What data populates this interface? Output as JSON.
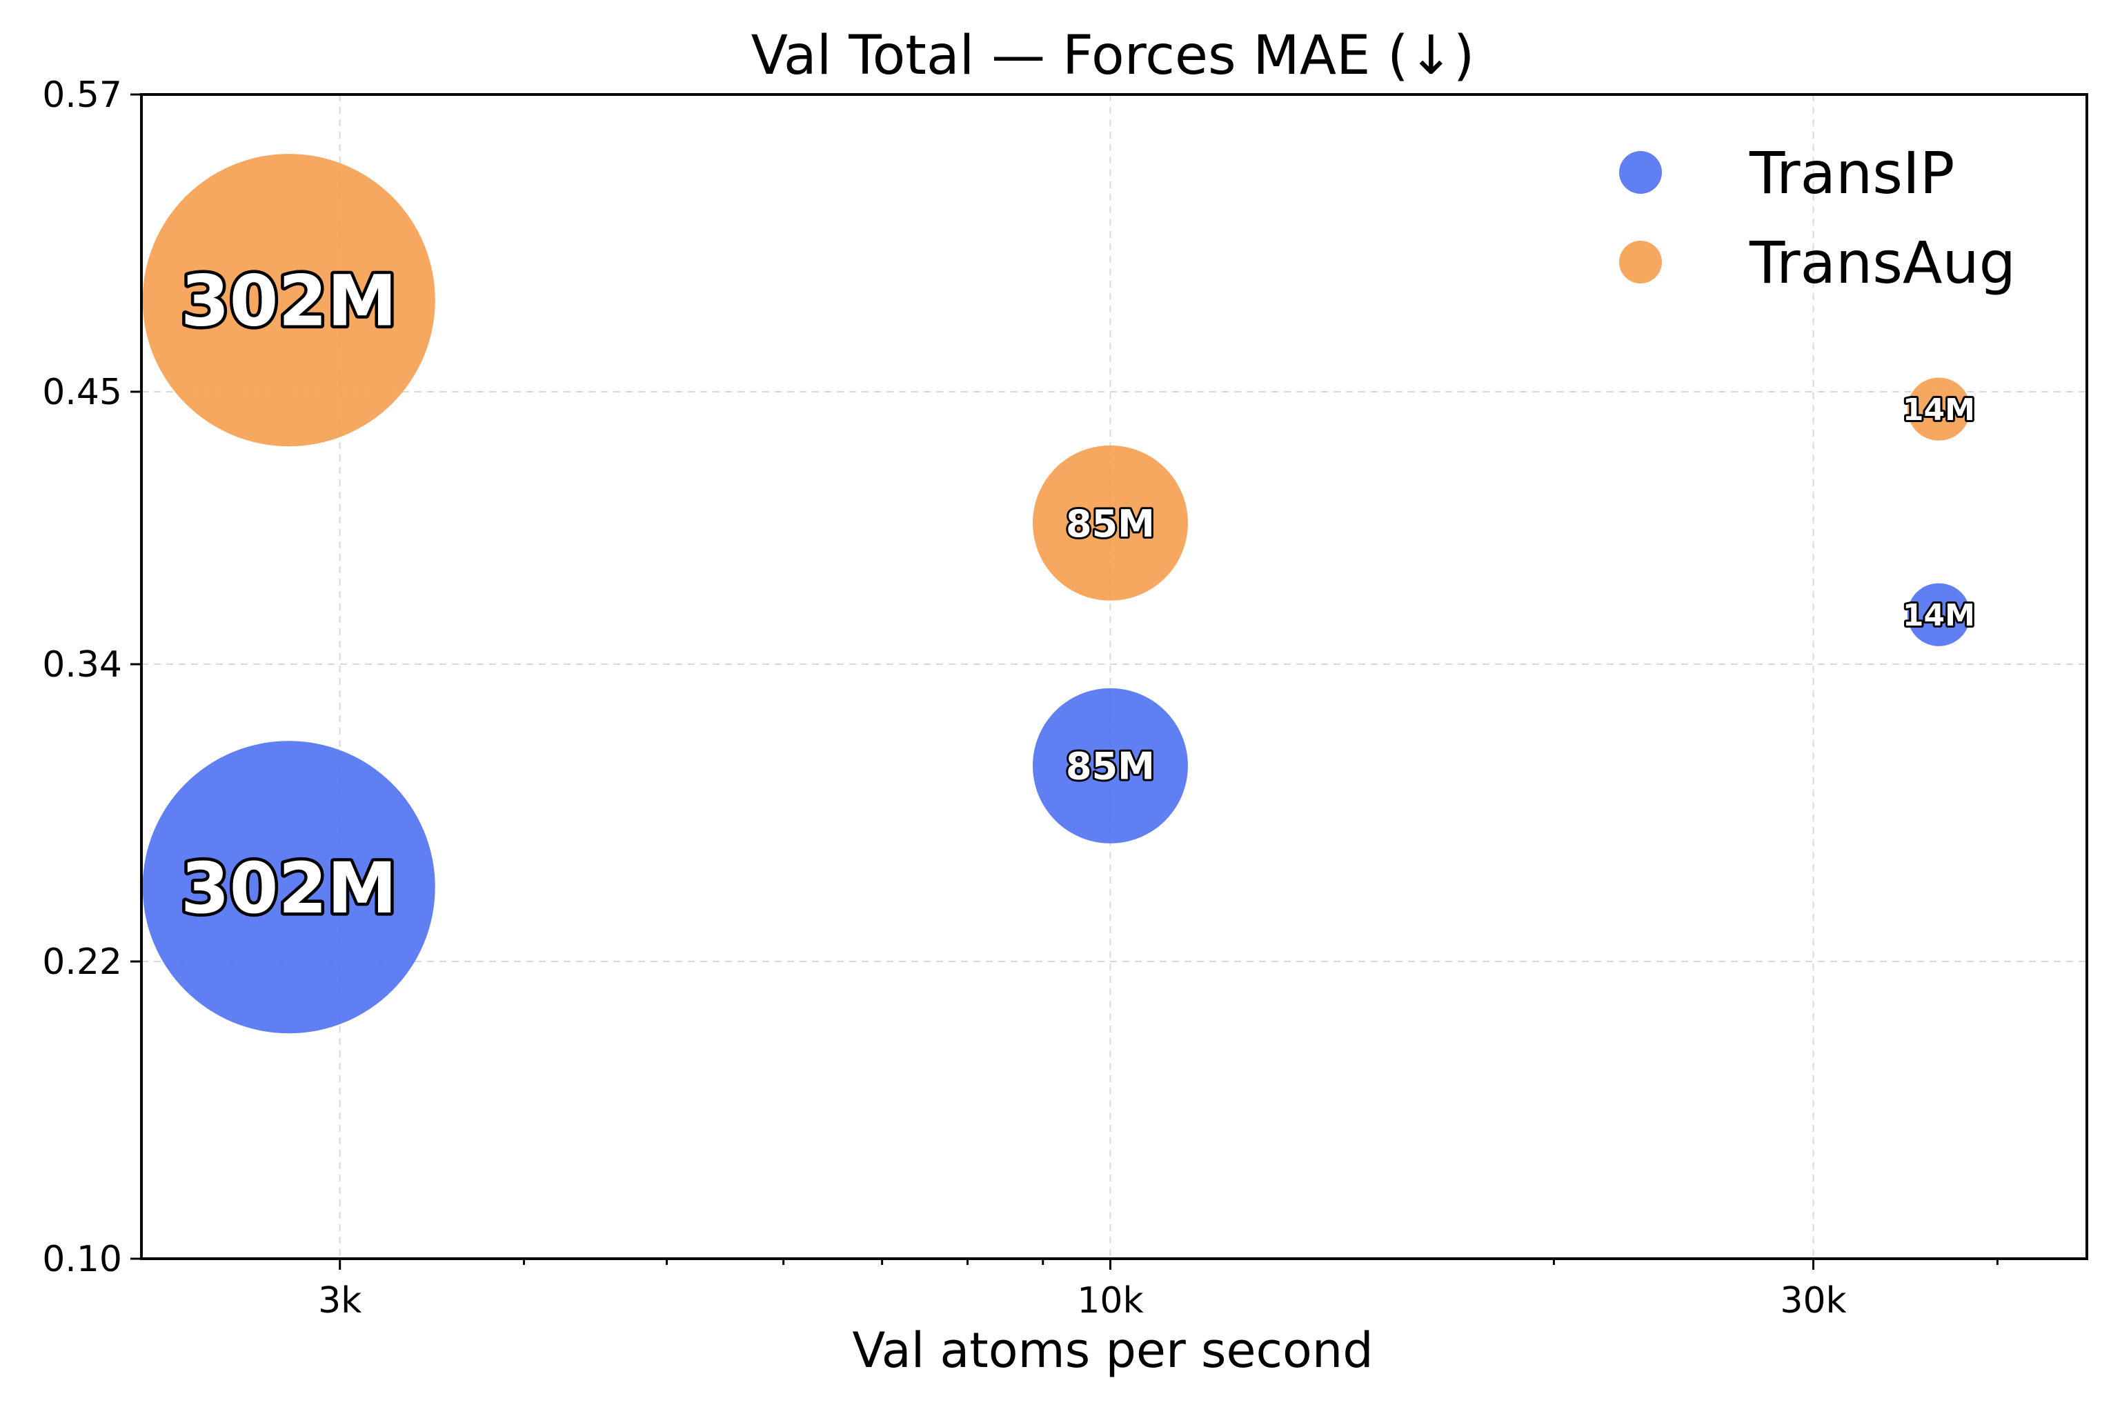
{
  "chart_data": {
    "type": "scatter",
    "title": "Val Total — Forces MAE (↓)",
    "xlabel": "Val atoms per second",
    "ylabel": "",
    "xscale": "log",
    "xlim": [
      2200,
      46000
    ],
    "ylim": [
      0.1,
      0.57
    ],
    "x_ticks": [
      3000,
      10000,
      30000
    ],
    "x_tick_labels": [
      "3k",
      "10k",
      "30k"
    ],
    "y_ticks": [
      0.1,
      0.22,
      0.34,
      0.45,
      0.57
    ],
    "y_tick_labels": [
      "0.10",
      "0.22",
      "0.34",
      "0.45",
      "0.57"
    ],
    "grid": true,
    "legend_position": "top-right",
    "series": [
      {
        "name": "TransIP",
        "color": "#4f71f2",
        "points": [
          {
            "x": 2770,
            "y": 0.25,
            "size_label": "302M",
            "params_m": 302
          },
          {
            "x": 10000,
            "y": 0.299,
            "size_label": "85M",
            "params_m": 85
          },
          {
            "x": 36500,
            "y": 0.36,
            "size_label": "14M",
            "params_m": 14
          }
        ]
      },
      {
        "name": "TransAug",
        "color": "#f59d4f",
        "points": [
          {
            "x": 2770,
            "y": 0.487,
            "size_label": "302M",
            "params_m": 302
          },
          {
            "x": 10000,
            "y": 0.397,
            "size_label": "85M",
            "params_m": 85
          },
          {
            "x": 36500,
            "y": 0.443,
            "size_label": "14M",
            "params_m": 14
          }
        ]
      }
    ]
  }
}
